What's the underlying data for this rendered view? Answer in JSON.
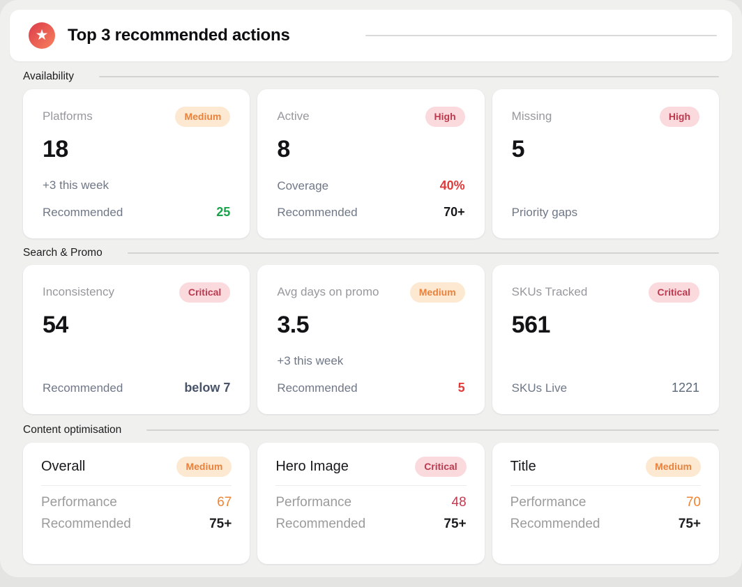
{
  "header": {
    "title": "Top 3 recommended actions",
    "icon": "star-icon"
  },
  "colors": {
    "star_gradient_start": "#e0454d",
    "star_gradient_end": "#f47c5c",
    "badge_medium_bg": "#fde9d2",
    "badge_medium_text": "#e8823c",
    "badge_high_bg": "#fbdade",
    "badge_high_text": "#bc3a4f",
    "positive_green": "#17a34a",
    "alert_red": "#e03a3a",
    "warn_orange": "#ee8434",
    "critical_value_red": "#c23a50"
  },
  "sections": [
    {
      "label": "Availability",
      "cards": [
        {
          "title": "Platforms",
          "badge": "Medium",
          "value": "18",
          "rows": [
            {
              "label": "+3 this week",
              "value": ""
            },
            {
              "label": "Recommended",
              "value": "25"
            }
          ]
        },
        {
          "title": "Active",
          "badge": "High",
          "value": "8",
          "rows": [
            {
              "label": "Coverage",
              "value": "40%"
            },
            {
              "label": "Recommended",
              "value": "70+"
            }
          ]
        },
        {
          "title": "Missing",
          "badge": "High",
          "value": "5",
          "rows": [
            {
              "label": "Priority gaps",
              "value": ""
            }
          ]
        }
      ]
    },
    {
      "label": "Search & Promo",
      "cards": [
        {
          "title": "Inconsistency",
          "badge": "Critical",
          "value": "54",
          "rows": [
            {
              "label": "Recommended",
              "value": "below 7"
            }
          ]
        },
        {
          "title": "Avg days on promo",
          "badge": "Medium",
          "value": "3.5",
          "rows": [
            {
              "label": "+3 this week",
              "value": ""
            },
            {
              "label": "Recommended",
              "value": "5"
            }
          ]
        },
        {
          "title": "SKUs Tracked",
          "badge": "Critical",
          "value": "561",
          "rows": [
            {
              "label": "SKUs Live",
              "value": "1221"
            }
          ]
        }
      ]
    },
    {
      "label": "Content optimisation",
      "cards": [
        {
          "title": "Overall",
          "badge": "Medium",
          "rows": [
            {
              "label": "Performance",
              "value": "67"
            },
            {
              "label": "Recommended",
              "value": "75+"
            }
          ]
        },
        {
          "title": "Hero Image",
          "badge": "Critical",
          "rows": [
            {
              "label": "Performance",
              "value": "48"
            },
            {
              "label": "Recommended",
              "value": "75+"
            }
          ]
        },
        {
          "title": "Title",
          "badge": "Medium",
          "rows": [
            {
              "label": "Performance",
              "value": "70"
            },
            {
              "label": "Recommended",
              "value": "75+"
            }
          ]
        }
      ]
    }
  ]
}
